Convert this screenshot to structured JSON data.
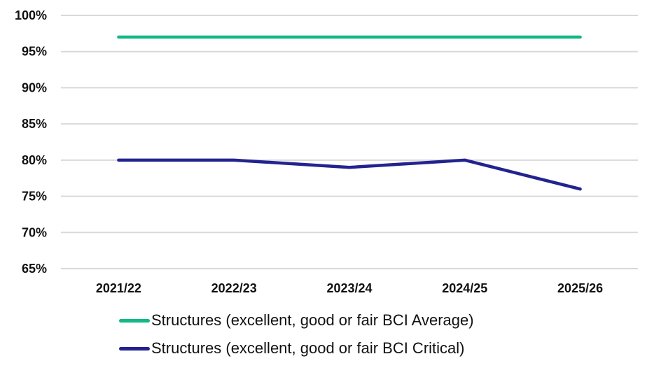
{
  "chart_data": {
    "type": "line",
    "title": "",
    "xlabel": "",
    "ylabel": "",
    "categories": [
      "2021/22",
      "2022/23",
      "2023/24",
      "2024/25",
      "2025/26"
    ],
    "series": [
      {
        "name": "Structures (excellent, good or fair BCI Average)",
        "color": "#12b886",
        "values": [
          97,
          97,
          97,
          97,
          97
        ]
      },
      {
        "name": "Structures (excellent, good or fair BCI Critical)",
        "color": "#23238f",
        "values": [
          80,
          80,
          79,
          80,
          76
        ]
      }
    ],
    "ylim": [
      65,
      100
    ],
    "yticks": [
      100,
      95,
      90,
      85,
      80,
      75,
      70,
      65
    ],
    "ytick_labels": [
      "100%",
      "95%",
      "90%",
      "85%",
      "80%",
      "75%",
      "70%",
      "65%"
    ],
    "grid": true,
    "legend_position": "bottom"
  },
  "legend": {
    "items": [
      {
        "label": "Structures (excellent, good or fair BCI Average)",
        "color": "#12b886"
      },
      {
        "label": "Structures (excellent, good or fair BCI Critical)",
        "color": "#23238f"
      }
    ]
  }
}
